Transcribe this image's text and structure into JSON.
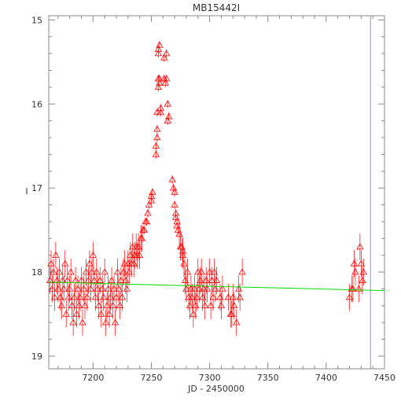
{
  "chart_data": {
    "type": "scatter",
    "title": "MB15442I",
    "xlabel": "JD - 2450000",
    "ylabel": "I",
    "xlim": [
      7162,
      7450
    ],
    "ylim": [
      19.15,
      14.95
    ],
    "y_inverted": true,
    "x_ticks": [
      7200,
      7250,
      7300,
      7350,
      7400,
      7450
    ],
    "x_tick_labels": [
      "7200",
      "7250",
      "7300",
      "7350",
      "7400",
      "7450"
    ],
    "y_ticks": [
      15,
      16,
      17,
      18,
      19
    ],
    "y_tick_labels": [
      "15",
      "16",
      "17",
      "18",
      "19"
    ],
    "grid": false,
    "marker": "open-triangle",
    "colors": {
      "points": "#ff0000",
      "baseline": "#00dd00",
      "vline": "#8c8cd8",
      "axes": "#888888"
    },
    "series": [
      {
        "x": [
          7163,
          7164,
          7165,
          7166,
          7167,
          7168,
          7169,
          7170,
          7171,
          7172,
          7173,
          7174,
          7175,
          7176,
          7177,
          7178,
          7179,
          7180,
          7181,
          7182,
          7183,
          7184,
          7185,
          7186,
          7187,
          7188,
          7189,
          7190,
          7191,
          7192,
          7193,
          7194,
          7195,
          7196,
          7197,
          7198,
          7199,
          7200,
          7201,
          7202,
          7203,
          7204,
          7205,
          7206,
          7207,
          7208,
          7209,
          7210,
          7211,
          7212,
          7213,
          7214,
          7215,
          7216,
          7217,
          7218,
          7219,
          7220,
          7221,
          7222,
          7223,
          7224,
          7225,
          7226,
          7227,
          7228,
          7229,
          7230,
          7231,
          7232,
          7233,
          7234,
          7235,
          7236,
          7237,
          7238,
          7239,
          7240,
          7241,
          7242,
          7243,
          7244,
          7245,
          7246,
          7247,
          7248,
          7250,
          7250,
          7251,
          7254,
          7254,
          7255,
          7255,
          7255,
          7256,
          7256,
          7256,
          7256,
          7257,
          7257,
          7257,
          7258,
          7258,
          7261,
          7261,
          7262,
          7263,
          7263,
          7264,
          7264,
          7265,
          7268,
          7269,
          7270,
          7270,
          7271,
          7271,
          7272,
          7272,
          7273,
          7274,
          7275,
          7276,
          7277,
          7277,
          7278,
          7279,
          7280,
          7281,
          7282,
          7283,
          7284,
          7285,
          7286,
          7287,
          7288,
          7289,
          7290,
          7291,
          7292,
          7293,
          7294,
          7295,
          7296,
          7297,
          7298,
          7300,
          7301,
          7302,
          7303,
          7304,
          7305,
          7306,
          7309,
          7310,
          7311,
          7316,
          7318,
          7319,
          7320,
          7321,
          7323,
          7325,
          7326,
          7328,
          7420,
          7422,
          7423,
          7424,
          7425,
          7428,
          7429,
          7430,
          7431,
          7432
        ],
        "y": [
          18.1,
          17.9,
          18.2,
          18.0,
          18.3,
          17.8,
          18.1,
          18.2,
          18.0,
          18.3,
          18.4,
          18.1,
          18.2,
          17.9,
          18.5,
          18.1,
          18.3,
          18.2,
          18.0,
          18.4,
          18.6,
          18.3,
          18.1,
          18.5,
          18.2,
          18.4,
          18.3,
          18.1,
          18.6,
          18.2,
          18.4,
          18.0,
          18.3,
          18.1,
          17.9,
          18.2,
          18.0,
          17.8,
          18.1,
          18.3,
          18.0,
          18.2,
          18.4,
          18.1,
          18.5,
          18.2,
          18.3,
          18.0,
          18.6,
          18.4,
          18.2,
          18.5,
          18.3,
          18.1,
          18.4,
          18.2,
          18.6,
          18.3,
          18.0,
          18.2,
          18.4,
          18.1,
          18.3,
          18.0,
          17.9,
          18.1,
          18.2,
          17.9,
          18.0,
          17.8,
          17.9,
          17.7,
          17.9,
          17.8,
          17.7,
          17.8,
          17.7,
          17.8,
          17.6,
          17.6,
          17.5,
          17.5,
          17.4,
          17.4,
          17.3,
          17.2,
          17.1,
          17.15,
          17.05,
          16.6,
          16.5,
          16.4,
          16.3,
          16.1,
          15.8,
          15.7,
          15.4,
          15.35,
          15.3,
          15.75,
          15.7,
          16.05,
          16.1,
          15.45,
          15.7,
          15.75,
          15.4,
          15.7,
          16.0,
          16.2,
          16.15,
          16.9,
          17.0,
          17.05,
          17.2,
          17.3,
          17.35,
          17.45,
          17.4,
          17.5,
          17.55,
          17.7,
          17.7,
          17.75,
          17.8,
          17.9,
          18.1,
          18.2,
          18.0,
          18.3,
          18.4,
          18.2,
          18.3,
          18.5,
          18.2,
          18.4,
          18.3,
          18.0,
          18.2,
          18.1,
          18.0,
          18.3,
          18.2,
          18.4,
          18.1,
          18.2,
          18.0,
          18.4,
          18.1,
          18.3,
          18.0,
          18.2,
          18.1,
          18.3,
          18.4,
          18.2,
          18.3,
          18.5,
          18.5,
          18.3,
          18.4,
          18.6,
          18.2,
          18.3,
          18.0,
          18.3,
          18.2,
          18.2,
          17.9,
          18.0,
          18.2,
          17.7,
          17.9,
          18.1,
          18.0
        ]
      }
    ],
    "baseline": {
      "x": [
        7162,
        7450
      ],
      "y": [
        18.12,
        18.22
      ]
    },
    "vline_x": 7438
  }
}
